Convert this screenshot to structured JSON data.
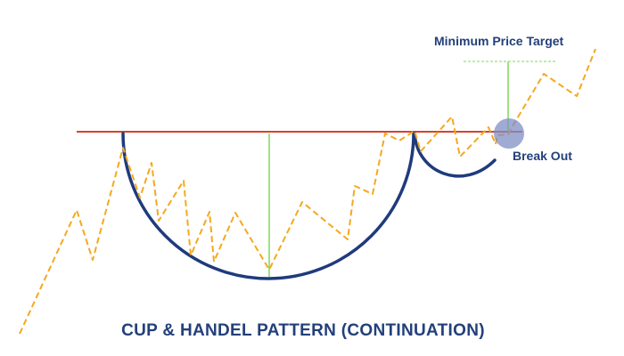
{
  "diagram": {
    "title": "CUP & HANDEL PATTERN (CONTINUATION)",
    "labels": {
      "target": "Minimum Price Target",
      "breakout": "Break Out"
    },
    "colors": {
      "price": "#f4a91f",
      "resistance": "#d9402f",
      "cup": "#1f3b7d",
      "measure": "#7ed957",
      "breakout_marker": "#7f8fc4",
      "text": "#23407a"
    }
  }
}
